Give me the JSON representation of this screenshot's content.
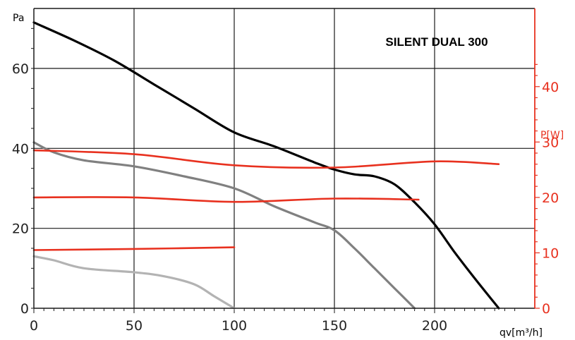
{
  "chart_data": {
    "type": "line",
    "title": "SILENT DUAL 300",
    "xlabel": "qv[m³/h]",
    "ylabel": "Pa",
    "y2label": "P[W]",
    "xlim": [
      0,
      250
    ],
    "ylim": [
      0,
      75
    ],
    "y2lim": [
      0,
      54.1
    ],
    "x_ticks": [
      0,
      50,
      100,
      150,
      200
    ],
    "y_ticks": [
      0,
      20,
      40,
      60
    ],
    "y2_ticks": [
      0,
      10,
      20,
      30,
      40
    ],
    "grid": true,
    "colors": {
      "pressure_high": "#000000",
      "pressure_mid": "#808080",
      "pressure_low": "#b3b3b3",
      "power": "#e8311f",
      "axis": "#1a1a1a",
      "y2_axis": "#e8311f"
    },
    "series": [
      {
        "axis": "left",
        "color_key": "pressure_high",
        "x": [
          0,
          20,
          40,
          60,
          80,
          100,
          120,
          140,
          150,
          160,
          170,
          180,
          190,
          200,
          210,
          220,
          232
        ],
        "y": [
          71.5,
          67,
          62,
          56,
          50,
          44,
          40.5,
          36.5,
          34.7,
          33.5,
          33,
          31,
          26.5,
          21,
          14,
          7.5,
          0
        ]
      },
      {
        "axis": "left",
        "color_key": "pressure_mid",
        "x": [
          0,
          10,
          25,
          50,
          75,
          100,
          120,
          140,
          150,
          160,
          170,
          180,
          190
        ],
        "y": [
          41.5,
          39,
          37,
          35.5,
          33,
          30,
          25.5,
          21.5,
          19.5,
          15,
          10,
          5,
          0
        ]
      },
      {
        "axis": "left",
        "color_key": "pressure_low",
        "x": [
          0,
          10,
          25,
          50,
          65,
          80,
          90,
          100
        ],
        "y": [
          13,
          12,
          10,
          9,
          8,
          6,
          3,
          0
        ]
      },
      {
        "axis": "right",
        "color_key": "power",
        "x": [
          0,
          50,
          100,
          150,
          200,
          232
        ],
        "y": [
          28.5,
          27.8,
          25.8,
          25.4,
          26.5,
          26
        ]
      },
      {
        "axis": "right",
        "color_key": "power",
        "x": [
          0,
          50,
          100,
          150,
          192
        ],
        "y": [
          20,
          20,
          19.2,
          19.8,
          19.6
        ]
      },
      {
        "axis": "right",
        "color_key": "power",
        "x": [
          0,
          50,
          100
        ],
        "y": [
          10.5,
          10.7,
          11
        ]
      }
    ]
  }
}
